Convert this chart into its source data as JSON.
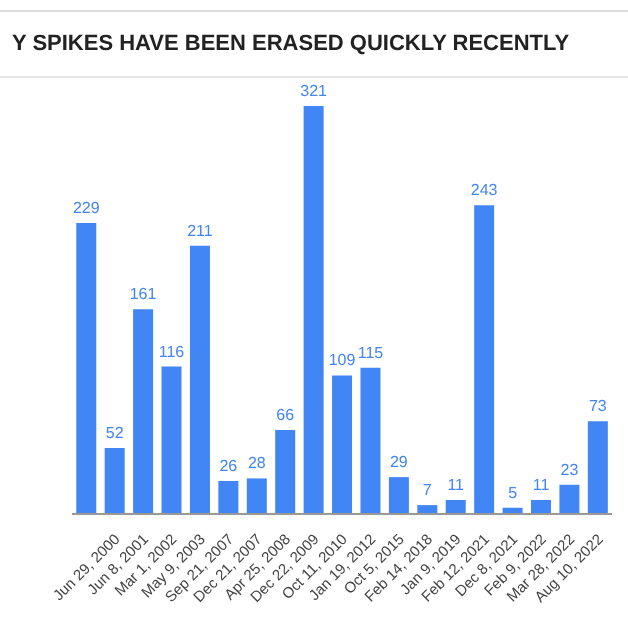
{
  "chart_data": {
    "type": "bar",
    "title": "Y SPIKES HAVE BEEN ERASED QUICKLY RECENTLY",
    "categories": [
      null,
      "Jun 29, 2000",
      "Jun 8, 2001",
      "Mar 1, 2002",
      "May 9, 2003",
      "Sep 21, 2007",
      "Dec 21, 2007",
      "Apr 25, 2008",
      "Dec 22, 2009",
      "Oct 11, 2010",
      "Jan 19, 2012",
      "Oct 5, 2015",
      "Feb 14, 2018",
      "Jan 9, 2019",
      "Feb 12, 2021",
      "Dec 8, 2021",
      "Feb 9, 2022",
      "Mar 28, 2022",
      "Aug 10, 2022"
    ],
    "values": [
      229,
      52,
      161,
      116,
      211,
      26,
      28,
      66,
      321,
      109,
      115,
      29,
      7,
      11,
      243,
      5,
      11,
      23,
      73
    ],
    "color": "#4285f4",
    "tick_labels": "x",
    "data_labels": true
  }
}
